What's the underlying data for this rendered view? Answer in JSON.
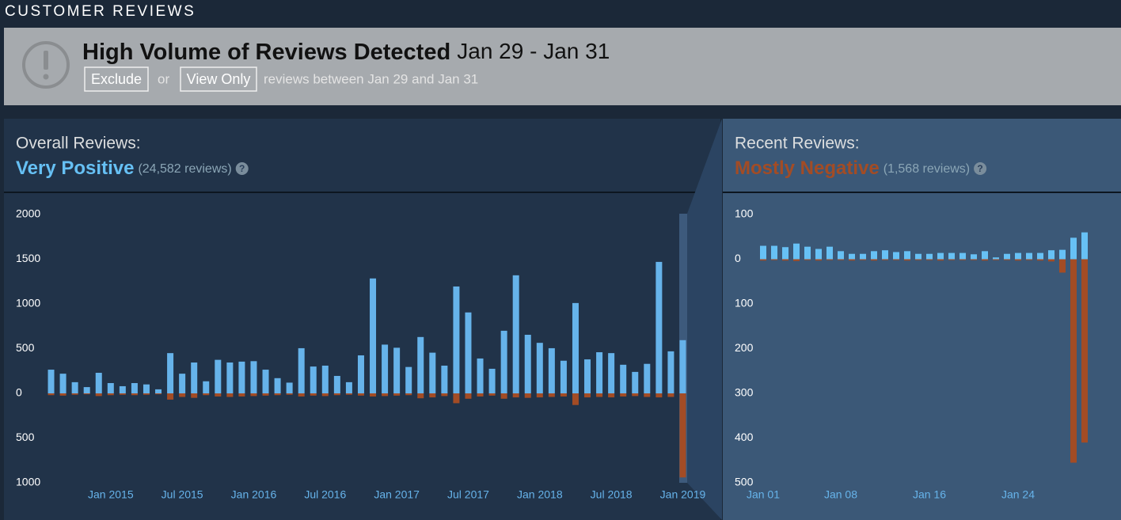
{
  "header": {
    "title": "CUSTOMER REVIEWS"
  },
  "alert": {
    "title": "High Volume of Reviews Detected",
    "dates": "Jan 29 - Jan 31",
    "exclude": "Exclude",
    "or": "or",
    "view_only": "View Only",
    "description": "reviews between Jan 29 and Jan 31"
  },
  "chart_data": [
    {
      "type": "bar",
      "title": "Overall Reviews:",
      "rating": "Very Positive",
      "review_count": "(24,582 reviews)",
      "categories": [
        null,
        null,
        null,
        null,
        null,
        "Jan 2015",
        null,
        null,
        null,
        null,
        null,
        "Jul 2015",
        null,
        null,
        null,
        null,
        null,
        "Jan 2016",
        null,
        null,
        null,
        null,
        null,
        "Jul 2016",
        null,
        null,
        null,
        null,
        null,
        "Jan 2017",
        null,
        null,
        null,
        null,
        null,
        "Jul 2017",
        null,
        null,
        null,
        null,
        null,
        "Jan 2018",
        null,
        null,
        null,
        null,
        null,
        "Jul 2018",
        null,
        null,
        null,
        null,
        null,
        "Jan 2019"
      ],
      "series": [
        {
          "color": "#66b3ea",
          "values": [
            265,
            220,
            125,
            70,
            230,
            115,
            80,
            115,
            100,
            45,
            450,
            220,
            345,
            135,
            375,
            345,
            355,
            360,
            265,
            170,
            120,
            505,
            300,
            310,
            195,
            125,
            425,
            1285,
            545,
            510,
            295,
            630,
            455,
            310,
            1195,
            905,
            390,
            275,
            700,
            1320,
            655,
            565,
            505,
            365,
            1010,
            380,
            460,
            450,
            320,
            240,
            330,
            1470,
            470,
            595
          ]
        },
        {
          "color": "#a34c25",
          "values": [
            -20,
            -25,
            -15,
            -10,
            -30,
            -20,
            -15,
            -20,
            -15,
            -10,
            -70,
            -40,
            -50,
            -20,
            -35,
            -40,
            -35,
            -30,
            -25,
            -20,
            -15,
            -35,
            -25,
            -30,
            -20,
            -15,
            -25,
            -35,
            -30,
            -25,
            -20,
            -55,
            -45,
            -30,
            -110,
            -60,
            -35,
            -25,
            -60,
            -45,
            -50,
            -45,
            -40,
            -35,
            -130,
            -45,
            -40,
            -45,
            -35,
            -30,
            -40,
            -45,
            -40,
            -940
          ]
        }
      ],
      "ylim": [
        -1000,
        2000
      ],
      "yticks": [
        {
          "value": -1000,
          "label": "1000"
        },
        {
          "value": -500,
          "label": "500"
        },
        0,
        500,
        1000,
        1500,
        2000
      ]
    },
    {
      "type": "bar",
      "title": "Recent Reviews:",
      "rating": "Mostly Negative",
      "review_count": "(1,568 reviews)",
      "categories": [
        "Jan 01",
        null,
        null,
        null,
        null,
        null,
        null,
        "Jan 08",
        null,
        null,
        null,
        null,
        null,
        null,
        null,
        "Jan 16",
        null,
        null,
        null,
        null,
        null,
        null,
        null,
        "Jan 24",
        null,
        null,
        null,
        null,
        null,
        null
      ],
      "series": [
        {
          "color": "#67c1f5",
          "values": [
            30,
            30,
            27,
            35,
            28,
            23,
            28,
            18,
            12,
            12,
            18,
            20,
            16,
            18,
            12,
            12,
            14,
            14,
            14,
            11,
            18,
            4,
            12,
            14,
            14,
            14,
            20,
            21,
            48,
            60
          ]
        },
        {
          "color": "#a34c25",
          "values": [
            -3,
            -2,
            -3,
            -4,
            -2,
            -3,
            -2,
            -2,
            -3,
            -2,
            -3,
            -2,
            -2,
            -3,
            -2,
            -2,
            -3,
            -2,
            -2,
            -2,
            -3,
            -2,
            -2,
            -3,
            -2,
            -3,
            -5,
            -30,
            -455,
            -410
          ]
        }
      ],
      "ylim": [
        -500,
        100
      ],
      "yticks": [
        {
          "value": -500,
          "label": "500"
        },
        {
          "value": -400,
          "label": "400"
        },
        {
          "value": -300,
          "label": "300"
        },
        {
          "value": -200,
          "label": "200"
        },
        {
          "value": -100,
          "label": "100"
        },
        0,
        100
      ]
    }
  ]
}
